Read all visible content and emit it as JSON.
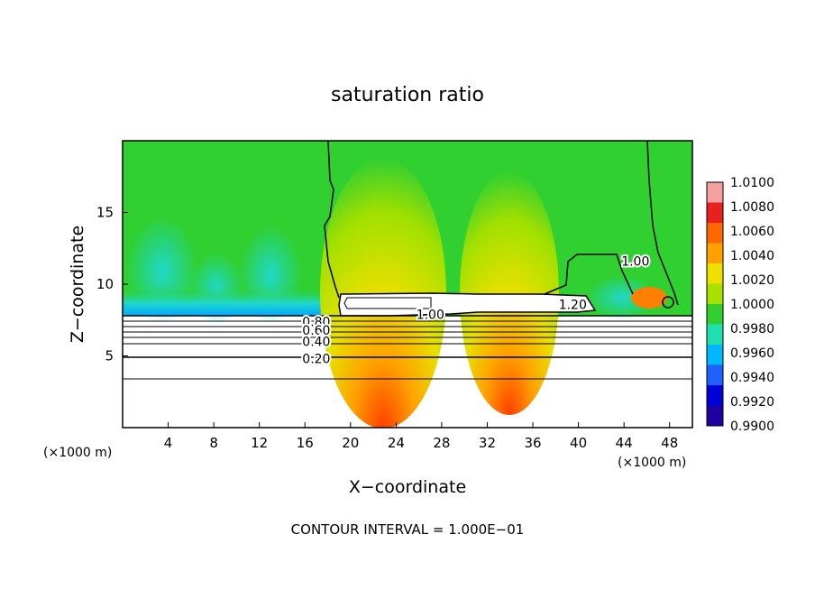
{
  "chart_data": {
    "type": "heatmap",
    "title": "saturation ratio",
    "xlabel": "X−coordinate",
    "ylabel": "Z−coordinate",
    "x_unit_left": "(×1000 m)",
    "x_unit_right": "(×1000 m)",
    "footer": "CONTOUR INTERVAL = 1.000E−01",
    "xlim": [
      0,
      50
    ],
    "ylim": [
      0,
      20
    ],
    "x_ticks": [
      4,
      8,
      12,
      16,
      20,
      24,
      28,
      32,
      36,
      40,
      44,
      48
    ],
    "y_ticks": [
      5,
      10,
      15
    ],
    "colorbar": {
      "levels": [
        "1.0100",
        "1.0080",
        "1.0060",
        "1.0040",
        "1.0020",
        "1.0000",
        "0.9980",
        "0.9960",
        "0.9940",
        "0.9920",
        "0.9900"
      ],
      "colors": [
        "#f4a0a0",
        "#e8201e",
        "#ff6a00",
        "#ffa000",
        "#f0e000",
        "#a8e000",
        "#30d030",
        "#20e0b0",
        "#00b8ff",
        "#2060ff",
        "#0000d8",
        "#2000a0"
      ]
    },
    "contour_labels": [
      {
        "text": "1.00",
        "x": 27.0,
        "z": 7.9
      },
      {
        "text": "1.00",
        "x": 45.0,
        "z": 11.6
      },
      {
        "text": "1.20",
        "x": 39.5,
        "z": 8.6
      },
      {
        "text": "0.80",
        "x": 17.0,
        "z": 7.4
      },
      {
        "text": "0.60",
        "x": 17.0,
        "z": 6.8
      },
      {
        "text": "0.40",
        "x": 17.0,
        "z": 6.0
      },
      {
        "text": "0.20",
        "x": 17.0,
        "z": 4.8
      }
    ],
    "gridlines": false
  }
}
